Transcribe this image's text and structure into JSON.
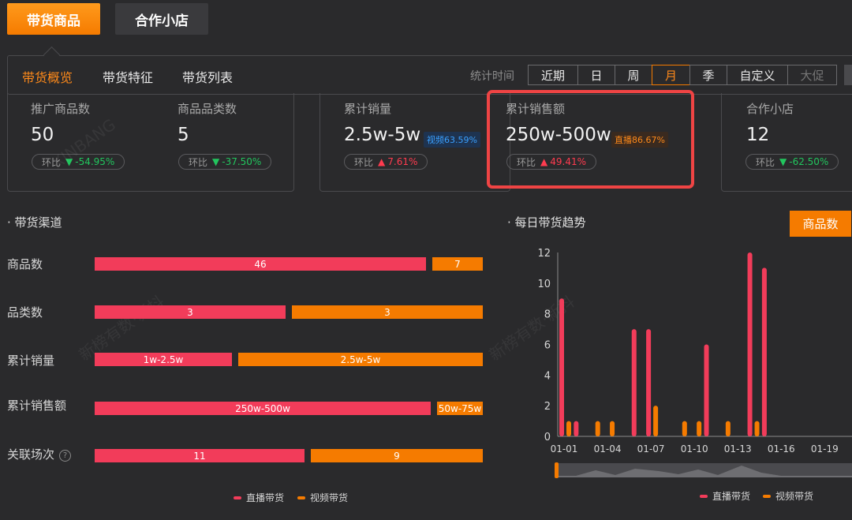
{
  "top_tabs": [
    {
      "label": "带货商品",
      "active": true
    },
    {
      "label": "合作小店",
      "active": false
    }
  ],
  "sub_tabs": [
    {
      "label": "带货概览",
      "active": true
    },
    {
      "label": "带货特征",
      "active": false
    },
    {
      "label": "带货列表",
      "active": false
    }
  ],
  "stat_time_label": "统计时间",
  "periods": [
    {
      "label": "近期",
      "active": false
    },
    {
      "label": "日",
      "active": false
    },
    {
      "label": "周",
      "active": false
    },
    {
      "label": "月",
      "active": true
    },
    {
      "label": "季",
      "active": false
    },
    {
      "label": "自定义",
      "active": false
    },
    {
      "label": "大促",
      "active": false
    }
  ],
  "metrics": [
    {
      "label": "推广商品数",
      "value": "50",
      "ratio_label": "环比",
      "direction": "down",
      "ratio": "-54.95%"
    },
    {
      "label": "商品品类数",
      "value": "5",
      "ratio_label": "环比",
      "direction": "down",
      "ratio": "-37.50%"
    },
    {
      "label": "累计销量",
      "value": "2.5w-5w",
      "tag": "视频63.59%",
      "ratio_label": "环比",
      "direction": "up",
      "ratio": "7.61%"
    },
    {
      "label": "累计销售额",
      "value": "250w-500w",
      "tag": "直播86.67%",
      "ratio_label": "环比",
      "direction": "up",
      "ratio": "49.41%"
    },
    {
      "label": "合作小店",
      "value": "12",
      "ratio_label": "环比",
      "direction": "down",
      "ratio": "-62.50%"
    }
  ],
  "channels": {
    "title": "· 带货渠道",
    "rows": [
      {
        "label": "商品数",
        "live": "46",
        "video": "7",
        "live_share": 0.868
      },
      {
        "label": "品类数",
        "live": "3",
        "video": "3",
        "live_share": 0.5
      },
      {
        "label": "累计销量",
        "live": "1w-2.5w",
        "video": "2.5w-5w",
        "live_share": 0.36
      },
      {
        "label": "累计销售额",
        "live": "250w-500w",
        "video": "50w-75w",
        "live_share": 0.88
      },
      {
        "label": "关联场次",
        "live": "11",
        "video": "9",
        "live_share": 0.55
      }
    ],
    "legend_live": "直播带货",
    "legend_video": "视频带货"
  },
  "trend": {
    "title": "· 每日带货趋势",
    "metric_button": "商品数"
  },
  "chart_data": {
    "type": "bar",
    "title": "",
    "xlabel": "",
    "ylabel": "",
    "ylim": [
      0,
      12
    ],
    "y_ticks": [
      "0",
      "2",
      "4",
      "6",
      "8",
      "10",
      "12"
    ],
    "categories": [
      "01-01",
      "01-02",
      "01-03",
      "01-04",
      "01-05",
      "01-06",
      "01-07",
      "01-08",
      "01-09",
      "01-10",
      "01-11",
      "01-12",
      "01-13",
      "01-14",
      "01-15",
      "01-16",
      "01-17",
      "01-18",
      "01-19",
      "01-20"
    ],
    "x_tick_labels": [
      "01-01",
      "01-04",
      "01-07",
      "01-10",
      "01-13",
      "01-16",
      "01-19"
    ],
    "series": [
      {
        "name": "直播带货",
        "color": "#f23c5a",
        "values": [
          9,
          1,
          0,
          0,
          0,
          7,
          7,
          0,
          0,
          0,
          6,
          0,
          0,
          12,
          11,
          0,
          0,
          0,
          0,
          0
        ]
      },
      {
        "name": "视频带货",
        "color": "#f57b00",
        "values": [
          1,
          0,
          1,
          1,
          0,
          0,
          2,
          0,
          1,
          1,
          0,
          1,
          0,
          1,
          0,
          0,
          0,
          0,
          0,
          0
        ]
      }
    ],
    "legend": "bottom",
    "grid": false
  },
  "watermark": "新榜有数·新抖"
}
